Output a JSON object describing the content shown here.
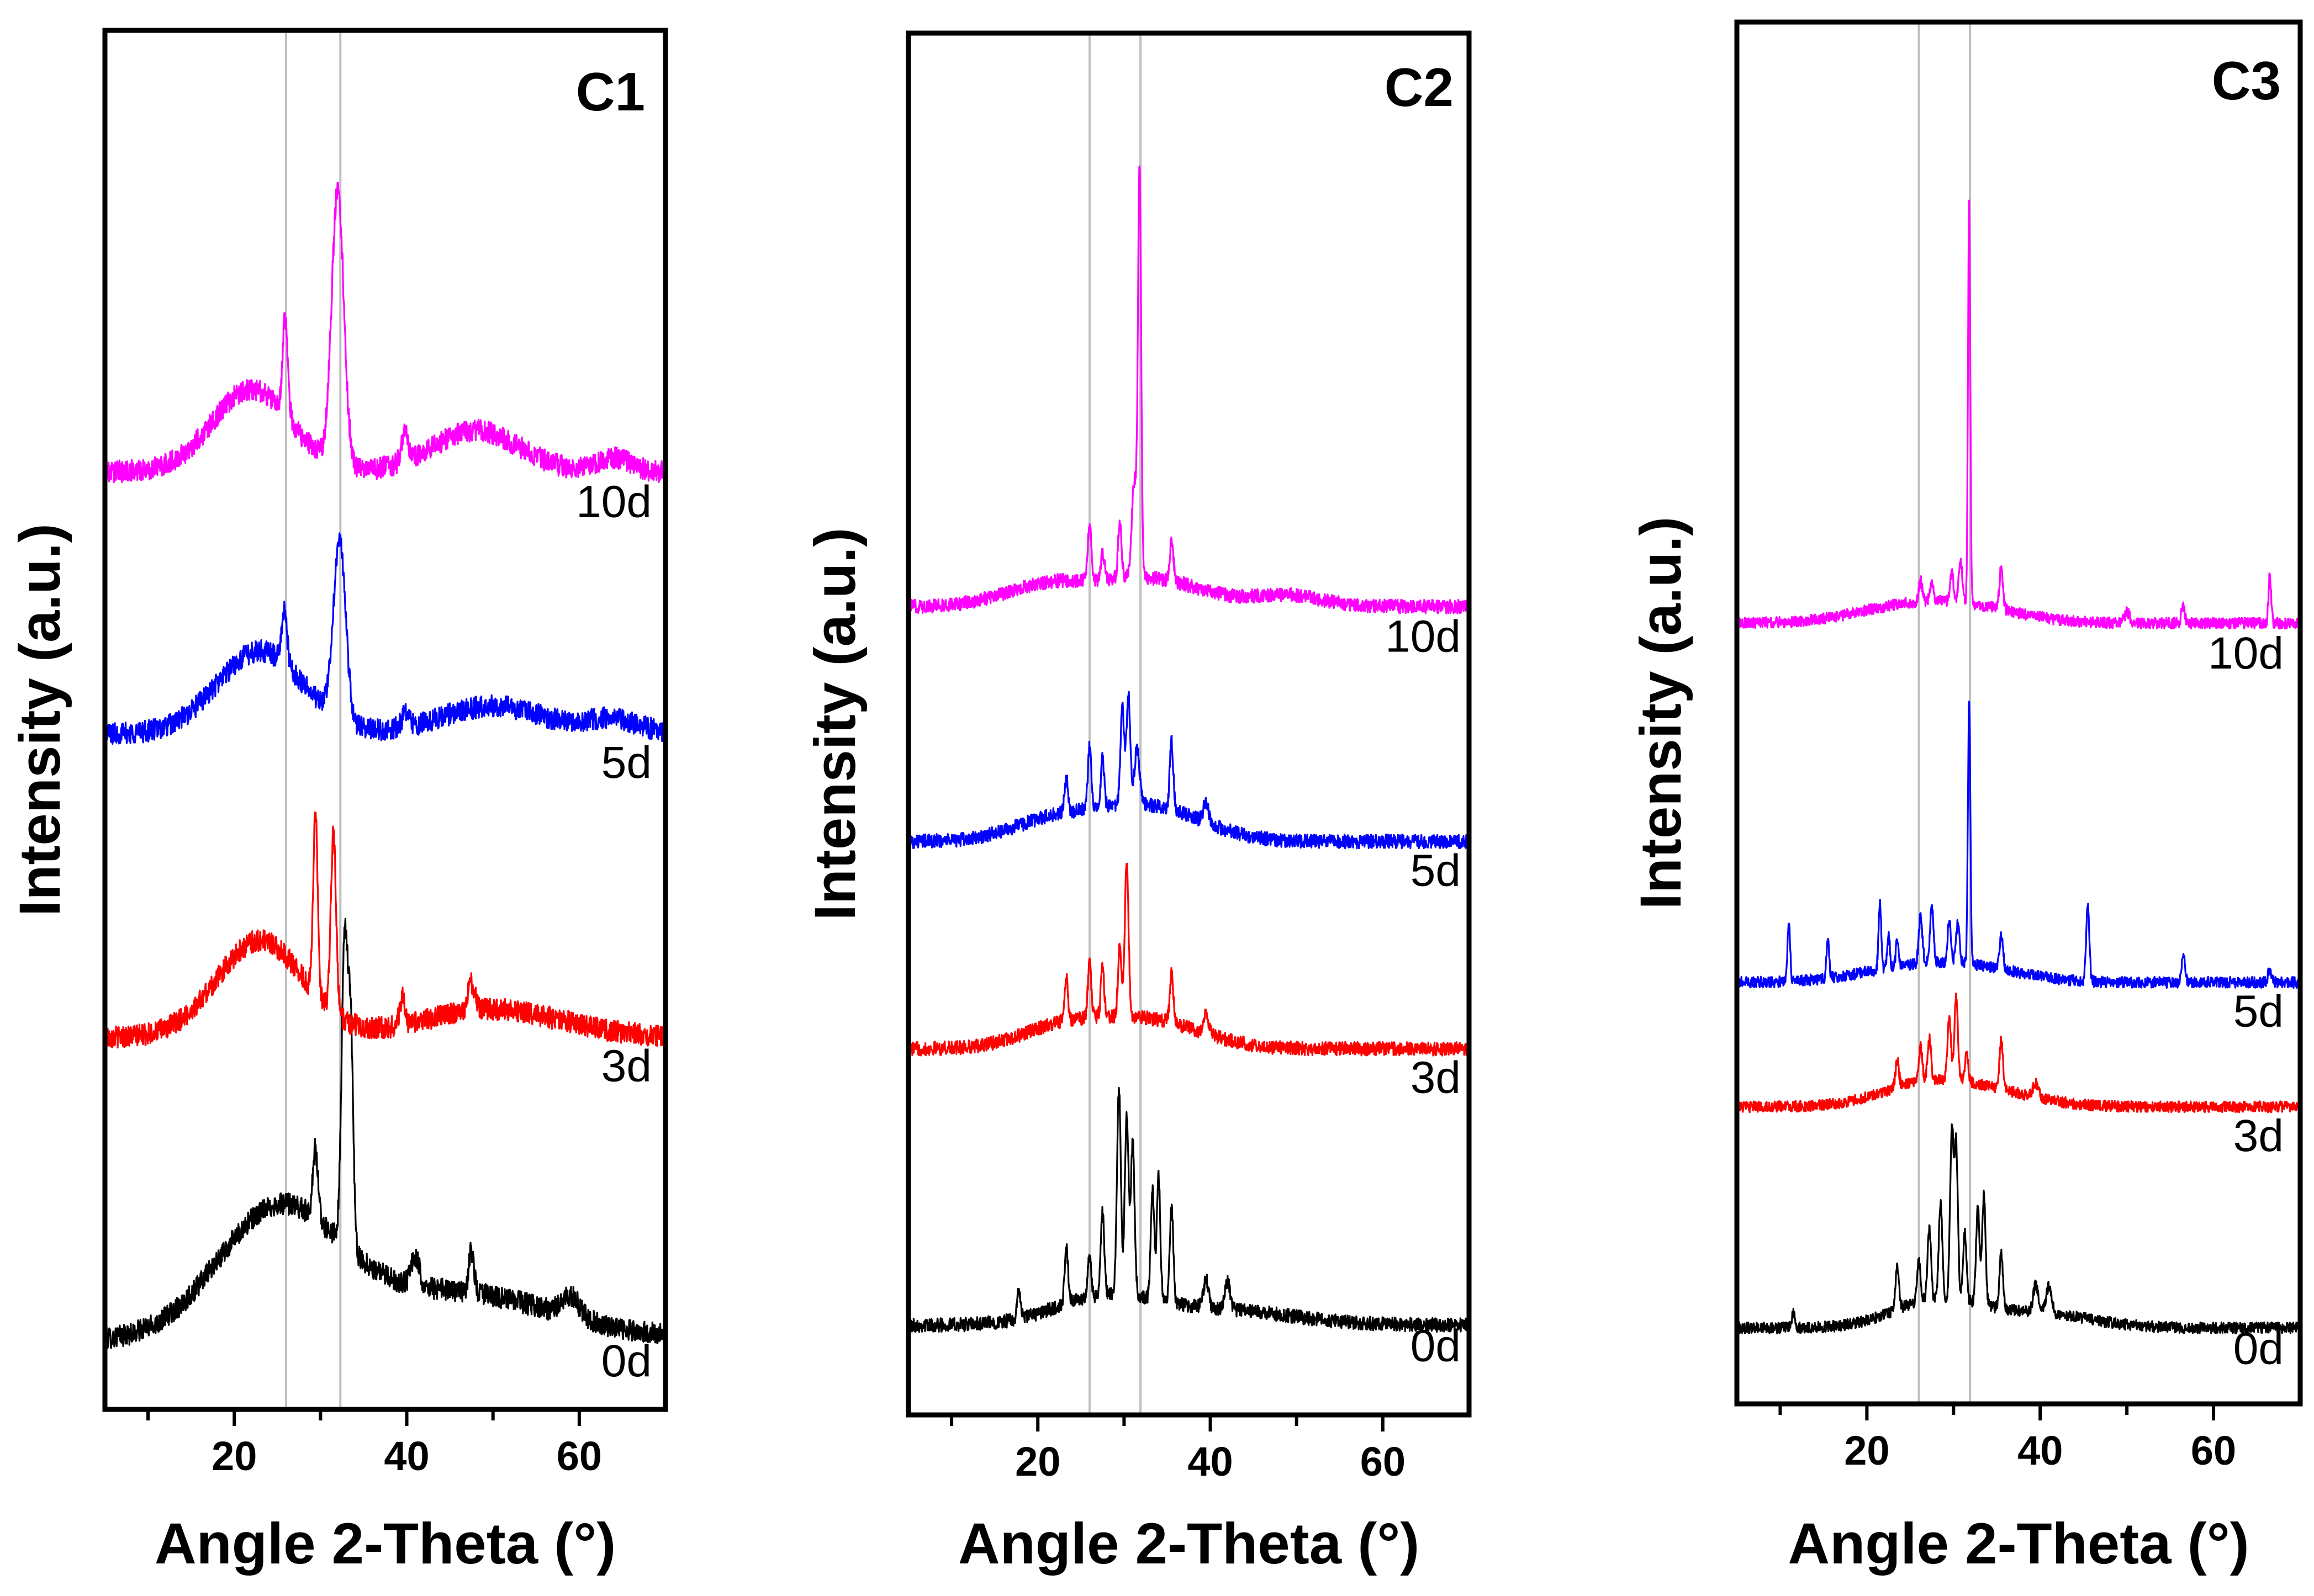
{
  "chart_data": [
    {
      "type": "line",
      "panel_label": "C1",
      "xlabel": "Angle 2-Theta (°)",
      "ylabel": "Intensity (a.u.)",
      "xlim": [
        5,
        70
      ],
      "xticks": [
        20,
        40,
        60
      ],
      "y_axis": "arbitrary units, traces vertically offset, no tick labels",
      "reference_lines_x": [
        26,
        32.3
      ],
      "series": [
        {
          "name": "0d",
          "color": "#000000",
          "baseline": 0.05,
          "noise": 0.008,
          "broad": [
            [
              25,
              0.09,
              7
            ],
            [
              45,
              0.035,
              12
            ]
          ],
          "peaks": [
            [
              29.4,
              0.05,
              0.3
            ],
            [
              32.8,
              0.22,
              0.35
            ],
            [
              33.5,
              0.15,
              0.3
            ],
            [
              41,
              0.02,
              0.5
            ],
            [
              47.5,
              0.03,
              0.3
            ],
            [
              59,
              0.015,
              1
            ]
          ]
        },
        {
          "name": "3d",
          "color": "#ff0000",
          "baseline": 0.27,
          "noise": 0.008,
          "broad": [
            [
              23,
              0.07,
              5
            ],
            [
              50,
              0.02,
              8
            ]
          ],
          "peaks": [
            [
              29.4,
              0.135,
              0.25
            ],
            [
              31.5,
              0.13,
              0.3
            ],
            [
              39.5,
              0.02,
              0.3
            ],
            [
              47.5,
              0.02,
              0.4
            ]
          ]
        },
        {
          "name": "5d",
          "color": "#0000ff",
          "baseline": 0.49,
          "noise": 0.008,
          "broad": [
            [
              23,
              0.06,
              5
            ],
            [
              50,
              0.02,
              6
            ],
            [
              64,
              0.01,
              3
            ]
          ],
          "peaks": [
            [
              25.8,
              0.04,
              0.3
            ],
            [
              32.2,
              0.13,
              0.7
            ],
            [
              39.8,
              0.01,
              0.4
            ]
          ]
        },
        {
          "name": "10d",
          "color": "#ff00ff",
          "baseline": 0.68,
          "noise": 0.008,
          "broad": [
            [
              22,
              0.06,
              4.5
            ],
            [
              48,
              0.03,
              5
            ],
            [
              64,
              0.01,
              2
            ]
          ],
          "peaks": [
            [
              25.9,
              0.07,
              0.3
            ],
            [
              32,
              0.2,
              0.7
            ],
            [
              39.8,
              0.02,
              0.4
            ]
          ]
        }
      ]
    },
    {
      "type": "line",
      "panel_label": "C2",
      "xlabel": "Angle 2-Theta (°)",
      "ylabel": "Intensity (a.u.)",
      "xlim": [
        5,
        70
      ],
      "xticks": [
        20,
        40,
        60
      ],
      "y_axis": "arbitrary units, traces vertically offset, no tick labels",
      "reference_lines_x": [
        26,
        31.9
      ],
      "series": [
        {
          "name": "0d",
          "color": "#000000",
          "baseline": 0.065,
          "noise": 0.005,
          "broad": [
            [
              28,
              0.02,
              6
            ],
            [
              42,
              0.01,
              8
            ]
          ],
          "peaks": [
            [
              17.8,
              0.02,
              0.2
            ],
            [
              23.3,
              0.04,
              0.2
            ],
            [
              26,
              0.03,
              0.2
            ],
            [
              27.5,
              0.06,
              0.2
            ],
            [
              29.4,
              0.15,
              0.22
            ],
            [
              30.3,
              0.13,
              0.22
            ],
            [
              31,
              0.11,
              0.22
            ],
            [
              33.3,
              0.08,
              0.2
            ],
            [
              34,
              0.09,
              0.2
            ],
            [
              35.5,
              0.07,
              0.2
            ],
            [
              39.5,
              0.02,
              0.3
            ],
            [
              42,
              0.02,
              0.3
            ]
          ]
        },
        {
          "name": "3d",
          "color": "#ff0000",
          "baseline": 0.265,
          "noise": 0.005,
          "broad": [
            [
              23,
              0.015,
              5
            ],
            [
              33,
              0.02,
              6
            ]
          ],
          "peaks": [
            [
              23.3,
              0.03,
              0.2
            ],
            [
              26,
              0.04,
              0.2
            ],
            [
              27.5,
              0.035,
              0.2
            ],
            [
              29.5,
              0.05,
              0.2
            ],
            [
              30.3,
              0.11,
              0.22
            ],
            [
              35.5,
              0.035,
              0.2
            ],
            [
              39.5,
              0.015,
              0.3
            ]
          ]
        },
        {
          "name": "5d",
          "color": "#0000ff",
          "baseline": 0.415,
          "noise": 0.005,
          "broad": [
            [
              22,
              0.015,
              5
            ],
            [
              33,
              0.025,
              6
            ]
          ],
          "peaks": [
            [
              23.3,
              0.025,
              0.2
            ],
            [
              26,
              0.045,
              0.2
            ],
            [
              27.5,
              0.035,
              0.2
            ],
            [
              29.8,
              0.07,
              0.22
            ],
            [
              30.5,
              0.08,
              0.22
            ],
            [
              31.5,
              0.04,
              0.3
            ],
            [
              35.5,
              0.05,
              0.2
            ],
            [
              39.5,
              0.015,
              0.3
            ]
          ]
        },
        {
          "name": "10d",
          "color": "#ff00ff",
          "baseline": 0.585,
          "noise": 0.005,
          "broad": [
            [
              21,
              0.015,
              5
            ],
            [
              33,
              0.02,
              6
            ],
            [
              49,
              0.008,
              4
            ]
          ],
          "peaks": [
            [
              26,
              0.04,
              0.2
            ],
            [
              27.5,
              0.02,
              0.2
            ],
            [
              29.5,
              0.04,
              0.2
            ],
            [
              31.2,
              0.07,
              0.3
            ],
            [
              31.8,
              0.29,
              0.18
            ],
            [
              35.5,
              0.03,
              0.2
            ]
          ]
        }
      ]
    },
    {
      "type": "line",
      "panel_label": "C3",
      "xlabel": "Angle 2-Theta (°)",
      "ylabel": "Intensity (a.u.)",
      "xlim": [
        5,
        70
      ],
      "xticks": [
        20,
        40,
        60
      ],
      "y_axis": "arbitrary units, traces vertically offset, no tick labels",
      "reference_lines_x": [
        26,
        31.9
      ],
      "series": [
        {
          "name": "0d",
          "color": "#000000",
          "baseline": 0.055,
          "noise": 0.004,
          "broad": [
            [
              28,
              0.02,
              5
            ],
            [
              40,
              0.01,
              6
            ]
          ],
          "peaks": [
            [
              11.5,
              0.01,
              0.2
            ],
            [
              23.5,
              0.03,
              0.2
            ],
            [
              26,
              0.03,
              0.2
            ],
            [
              27.2,
              0.05,
              0.2
            ],
            [
              28.5,
              0.07,
              0.2
            ],
            [
              29.8,
              0.12,
              0.2
            ],
            [
              30.3,
              0.11,
              0.2
            ],
            [
              31.3,
              0.05,
              0.2
            ],
            [
              32.8,
              0.07,
              0.2
            ],
            [
              33.5,
              0.08,
              0.2
            ],
            [
              35.5,
              0.04,
              0.2
            ],
            [
              39.5,
              0.02,
              0.3
            ],
            [
              41,
              0.02,
              0.3
            ]
          ]
        },
        {
          "name": "3d",
          "color": "#ff0000",
          "baseline": 0.215,
          "noise": 0.004,
          "broad": [
            [
              26,
              0.012,
              5
            ],
            [
              33,
              0.012,
              6
            ]
          ],
          "peaks": [
            [
              23.5,
              0.02,
              0.2
            ],
            [
              26.2,
              0.025,
              0.2
            ],
            [
              27.2,
              0.03,
              0.2
            ],
            [
              29.5,
              0.045,
              0.2
            ],
            [
              30.3,
              0.06,
              0.2
            ],
            [
              31.5,
              0.02,
              0.2
            ],
            [
              35.5,
              0.035,
              0.2
            ],
            [
              39.5,
              0.01,
              0.3
            ]
          ]
        },
        {
          "name": "5d",
          "color": "#0000ff",
          "baseline": 0.305,
          "noise": 0.004,
          "broad": [
            [
              24,
              0.008,
              6
            ],
            [
              32,
              0.01,
              6
            ]
          ],
          "peaks": [
            [
              11,
              0.045,
              0.15
            ],
            [
              15.5,
              0.03,
              0.15
            ],
            [
              21.5,
              0.05,
              0.15
            ],
            [
              22.5,
              0.025,
              0.15
            ],
            [
              23.5,
              0.02,
              0.15
            ],
            [
              26.2,
              0.035,
              0.2
            ],
            [
              27.5,
              0.04,
              0.2
            ],
            [
              29.5,
              0.03,
              0.2
            ],
            [
              30.5,
              0.03,
              0.2
            ],
            [
              31.8,
              0.19,
              0.14
            ],
            [
              35.5,
              0.025,
              0.2
            ],
            [
              45.5,
              0.055,
              0.18
            ],
            [
              56.5,
              0.02,
              0.2
            ],
            [
              66.5,
              0.01,
              0.2
            ]
          ]
        },
        {
          "name": "10d",
          "color": "#ff00ff",
          "baseline": 0.565,
          "noise": 0.004,
          "broad": [
            [
              24,
              0.01,
              6
            ],
            [
              32,
              0.01,
              6
            ]
          ],
          "peaks": [
            [
              26.2,
              0.015,
              0.2
            ],
            [
              27.5,
              0.012,
              0.2
            ],
            [
              29.8,
              0.02,
              0.2
            ],
            [
              30.8,
              0.03,
              0.2
            ],
            [
              31.8,
              0.29,
              0.13
            ],
            [
              35.5,
              0.03,
              0.2
            ],
            [
              50,
              0.008,
              0.3
            ],
            [
              56.5,
              0.012,
              0.2
            ],
            [
              66.5,
              0.035,
              0.15
            ]
          ]
        }
      ]
    }
  ]
}
